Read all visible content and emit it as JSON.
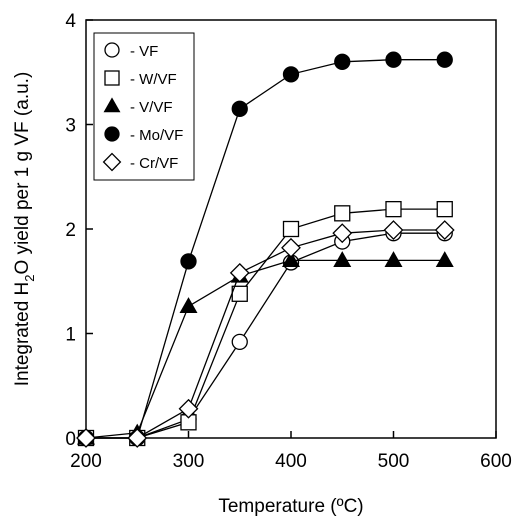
{
  "chart_data": {
    "type": "line",
    "title": "",
    "xlabel": "Temperature (ºC)",
    "ylabel_parts": [
      "Integrated H",
      "2",
      "O yield per 1 g VF (a.u.)"
    ],
    "xlim": [
      200,
      600
    ],
    "ylim": [
      0,
      4
    ],
    "x_ticks": [
      200,
      300,
      400,
      500,
      600
    ],
    "y_ticks": [
      0,
      1,
      2,
      3,
      4
    ],
    "grid": false,
    "legend_position": "top-left",
    "series": [
      {
        "name": "- VF",
        "marker": "circle",
        "filled": false,
        "x": [
          200,
          250,
          300,
          350,
          400,
          450,
          500,
          550
        ],
        "y": [
          0.0,
          0.0,
          0.18,
          0.92,
          1.68,
          1.88,
          1.96,
          1.96
        ]
      },
      {
        "name": "- W/VF",
        "marker": "square",
        "filled": false,
        "x": [
          200,
          250,
          300,
          350,
          400,
          450,
          500,
          550
        ],
        "y": [
          0.0,
          0.0,
          0.15,
          1.38,
          2.0,
          2.15,
          2.19,
          2.19
        ]
      },
      {
        "name": "- V/VF",
        "marker": "triangle",
        "filled": true,
        "x": [
          200,
          250,
          300,
          350,
          400,
          450,
          500,
          550
        ],
        "y": [
          0.0,
          0.05,
          1.26,
          1.55,
          1.7,
          1.7,
          1.7,
          1.7
        ]
      },
      {
        "name": "- Mo/VF",
        "marker": "circle",
        "filled": true,
        "x": [
          200,
          250,
          300,
          350,
          400,
          450,
          500,
          550
        ],
        "y": [
          0.0,
          0.0,
          1.69,
          3.15,
          3.48,
          3.6,
          3.62,
          3.62
        ]
      },
      {
        "name": "- Cr/VF",
        "marker": "diamond",
        "filled": false,
        "x": [
          200,
          250,
          300,
          350,
          400,
          450,
          500,
          550
        ],
        "y": [
          0.0,
          0.0,
          0.28,
          1.58,
          1.82,
          1.96,
          1.99,
          1.99
        ]
      }
    ]
  }
}
